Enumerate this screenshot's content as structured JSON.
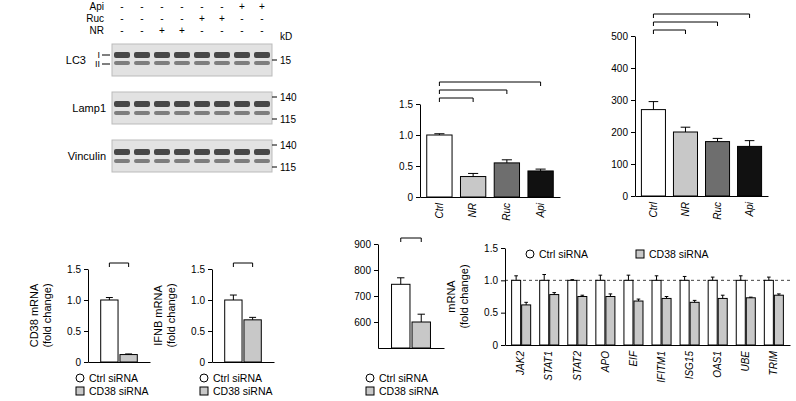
{
  "chart_data": [
    {
      "type": "bar",
      "categories": [
        "Ctrl",
        "NR",
        "Ruc",
        "Api"
      ],
      "values": [
        1.0,
        0.33,
        0.55,
        0.42
      ],
      "errors": [
        0.02,
        0.05,
        0.05,
        0.03
      ],
      "colors": [
        "#ffffff",
        "#c8c8c8",
        "#6e6e6e",
        "#111111"
      ],
      "ylim": [
        0,
        1.5
      ],
      "yticks": [
        0,
        0.5,
        {
          "value": 1,
          "label": "1.0"
        },
        1.5
      ]
    },
    {
      "type": "bar",
      "categories": [
        "Ctrl",
        "NR",
        "Ruc",
        "Api"
      ],
      "values": [
        270,
        200,
        170,
        155
      ],
      "errors": [
        25,
        15,
        10,
        18
      ],
      "colors": [
        "#ffffff",
        "#c8c8c8",
        "#6e6e6e",
        "#111111"
      ],
      "ylim": [
        0,
        500
      ],
      "yticks": [
        0,
        100,
        200,
        300,
        400,
        500
      ]
    },
    {
      "type": "bar",
      "categories": [
        null
      ],
      "series": [
        {
          "name": "Ctrl siRNA",
          "color": "#ffffff",
          "marker": "circle",
          "values": [
            1.0
          ],
          "errors": [
            0.04
          ]
        },
        {
          "name": "CD38 siRNA",
          "color": "#c8c8c8",
          "marker": "square",
          "values": [
            0.12
          ],
          "errors": [
            0.01
          ]
        }
      ],
      "ylim": [
        0,
        1.5
      ],
      "yticks": [
        0,
        0.5,
        {
          "value": 1,
          "label": "1.0"
        },
        1.5
      ],
      "ylabel": [
        "CD38 mRNA",
        "(fold change)"
      ],
      "legend": "bottom",
      "tick_labels": "y"
    },
    {
      "type": "bar",
      "categories": [
        null
      ],
      "series": [
        {
          "name": "Ctrl siRNA",
          "color": "#ffffff",
          "marker": "circle",
          "values": [
            1.0
          ],
          "errors": [
            0.08
          ]
        },
        {
          "name": "CD38 siRNA",
          "color": "#c8c8c8",
          "marker": "square",
          "values": [
            0.68
          ],
          "errors": [
            0.04
          ]
        }
      ],
      "ylim": [
        0,
        1.5
      ],
      "yticks": [
        0,
        0.5,
        {
          "value": 1,
          "label": "1.0"
        },
        1.5
      ],
      "ylabel": [
        "IFNB mRNA",
        "(fold change)"
      ],
      "legend": "bottom",
      "tick_labels": "y"
    },
    {
      "type": "bar",
      "categories": [
        null
      ],
      "series": [
        {
          "name": "Ctrl siRNA",
          "color": "#ffffff",
          "marker": "circle",
          "values": [
            745
          ],
          "errors": [
            25
          ]
        },
        {
          "name": "CD38 siRNA",
          "color": "#c8c8c8",
          "marker": "square",
          "values": [
            600
          ],
          "errors": [
            30
          ]
        }
      ],
      "ylim": [
        500,
        900
      ],
      "yticks": [
        600,
        700,
        800,
        900
      ],
      "legend": "bottom",
      "tick_labels": "y"
    },
    {
      "type": "bar",
      "categories": [
        "JAK2",
        "STAT1",
        "STAT2",
        "APO",
        "EIF",
        "IFITM1",
        "ISG15",
        "OAS1",
        "UBE",
        "TRIM"
      ],
      "series": [
        {
          "name": "Ctrl siRNA",
          "color": "#ffffff",
          "marker": "circle",
          "values": [
            1.0,
            1.0,
            1.0,
            1.0,
            1.0,
            1.0,
            1.0,
            1.0,
            1.0,
            1.0
          ],
          "errors": [
            0.07,
            0.09,
            0.01,
            0.08,
            0.08,
            0.07,
            0.06,
            0.05,
            0.07,
            0.05
          ]
        },
        {
          "name": "CD38 siRNA",
          "color": "#c8c8c8",
          "marker": "square",
          "values": [
            0.62,
            0.78,
            0.75,
            0.75,
            0.68,
            0.72,
            0.66,
            0.72,
            0.73,
            0.77
          ],
          "errors": [
            0.04,
            0.03,
            0.02,
            0.04,
            0.03,
            0.03,
            0.03,
            0.05,
            0.01,
            0.02
          ]
        }
      ],
      "ylim": [
        0,
        1.5
      ],
      "yticks": [
        0,
        0.5,
        {
          "value": 1,
          "label": "1.0"
        },
        1.5
      ],
      "reference_line": 1,
      "ylabel": [
        "mRNA",
        "(fold change)"
      ],
      "legend": "top"
    }
  ],
  "blot": {
    "treatments": [
      {
        "label": "Api",
        "signs": [
          "-",
          "-",
          "-",
          "-",
          "-",
          "-",
          "+",
          "+"
        ]
      },
      {
        "label": "Ruc",
        "signs": [
          "-",
          "-",
          "-",
          "-",
          "+",
          "+",
          "-",
          "-"
        ]
      },
      {
        "label": "NR",
        "signs": [
          "-",
          "-",
          "+",
          "+",
          "-",
          "-",
          "-",
          "-"
        ]
      }
    ],
    "kd_label": "kD",
    "proteins": [
      {
        "label": "LC3",
        "bands": [
          "I",
          "II"
        ],
        "kd": [
          15
        ]
      },
      {
        "label": "Lamp1",
        "kd": [
          140,
          115
        ]
      },
      {
        "label": "Vinculin",
        "kd": [
          140,
          115
        ]
      }
    ]
  }
}
